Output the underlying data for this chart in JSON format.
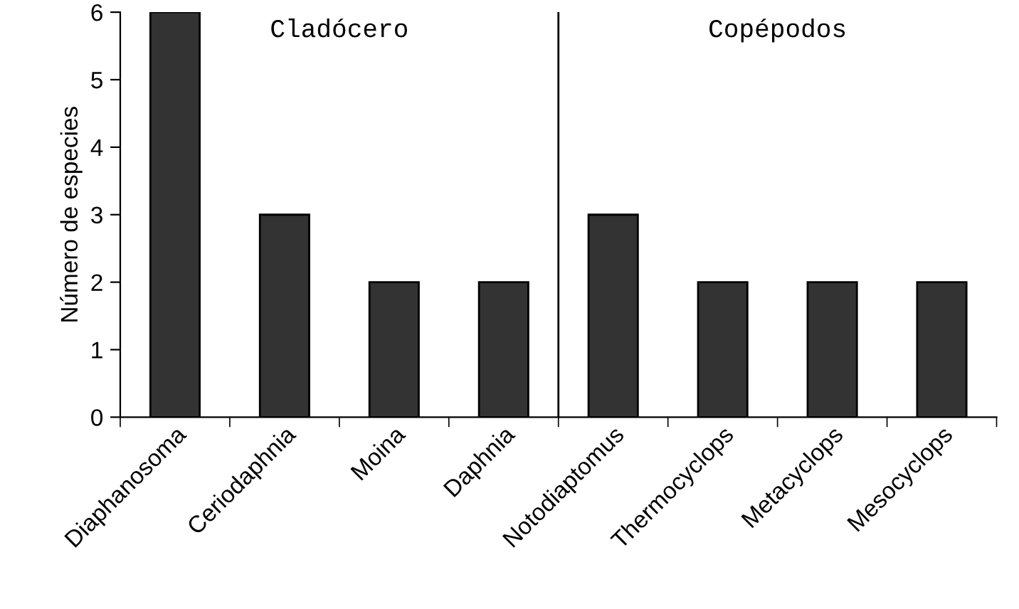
{
  "chart_data": {
    "type": "bar",
    "ylabel": "Número de especies",
    "categories": [
      "Diaphanosoma",
      "Ceriodaphnia",
      "Moina",
      "Daphnia",
      "Notodiaptomus",
      "Thermocyclops",
      "Metacyclops",
      "Mesocyclops"
    ],
    "values": [
      6,
      3,
      2,
      2,
      3,
      2,
      2,
      2
    ],
    "color": "#333333",
    "ylim": [
      0,
      6
    ],
    "yticks": [
      0,
      1,
      2,
      3,
      4,
      5,
      6
    ],
    "grid": false,
    "legend": false,
    "annotations": [
      "Cladócero",
      "Copépodos"
    ]
  }
}
